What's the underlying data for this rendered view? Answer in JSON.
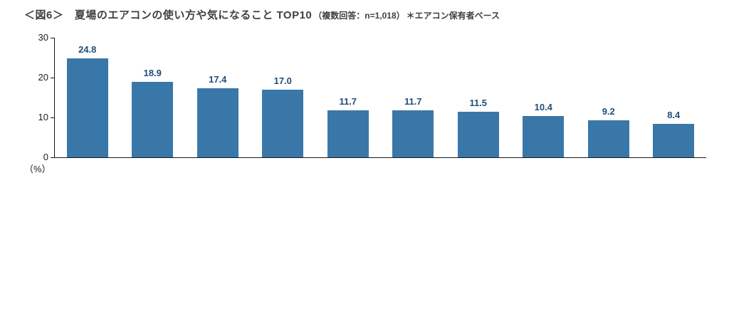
{
  "header": {
    "title_main": "＜図6＞　夏場のエアコンの使い方や気になること TOP10",
    "title_note1": "（複数回答：n=1,018）",
    "title_note2": "＊エアコン保有者ベース"
  },
  "chart_data": {
    "type": "bar",
    "title": "夏場のエアコンの使い方や気になること TOP10",
    "subtitle": "複数回答：n=1,018 ＊エアコン保有者ベース",
    "categories": [
      "",
      "",
      "",
      "",
      "",
      "",
      "",
      "",
      "",
      ""
    ],
    "values": [
      24.8,
      18.9,
      17.4,
      17.0,
      11.7,
      11.7,
      11.5,
      10.4,
      9.2,
      8.4
    ],
    "value_labels": [
      "24.8",
      "18.9",
      "17.4",
      "17.0",
      "11.7",
      "11.7",
      "11.5",
      "10.4",
      "9.2",
      "8.4"
    ],
    "xlabel": "",
    "ylabel": "（%）",
    "ylim": [
      0,
      30
    ],
    "yticks": [
      0,
      10,
      20,
      30
    ],
    "grid": false,
    "legend_position": "none",
    "bar_color": "#3a77a9",
    "value_label_color": "#1f4e79",
    "axis_color": "#1a1a1a"
  }
}
